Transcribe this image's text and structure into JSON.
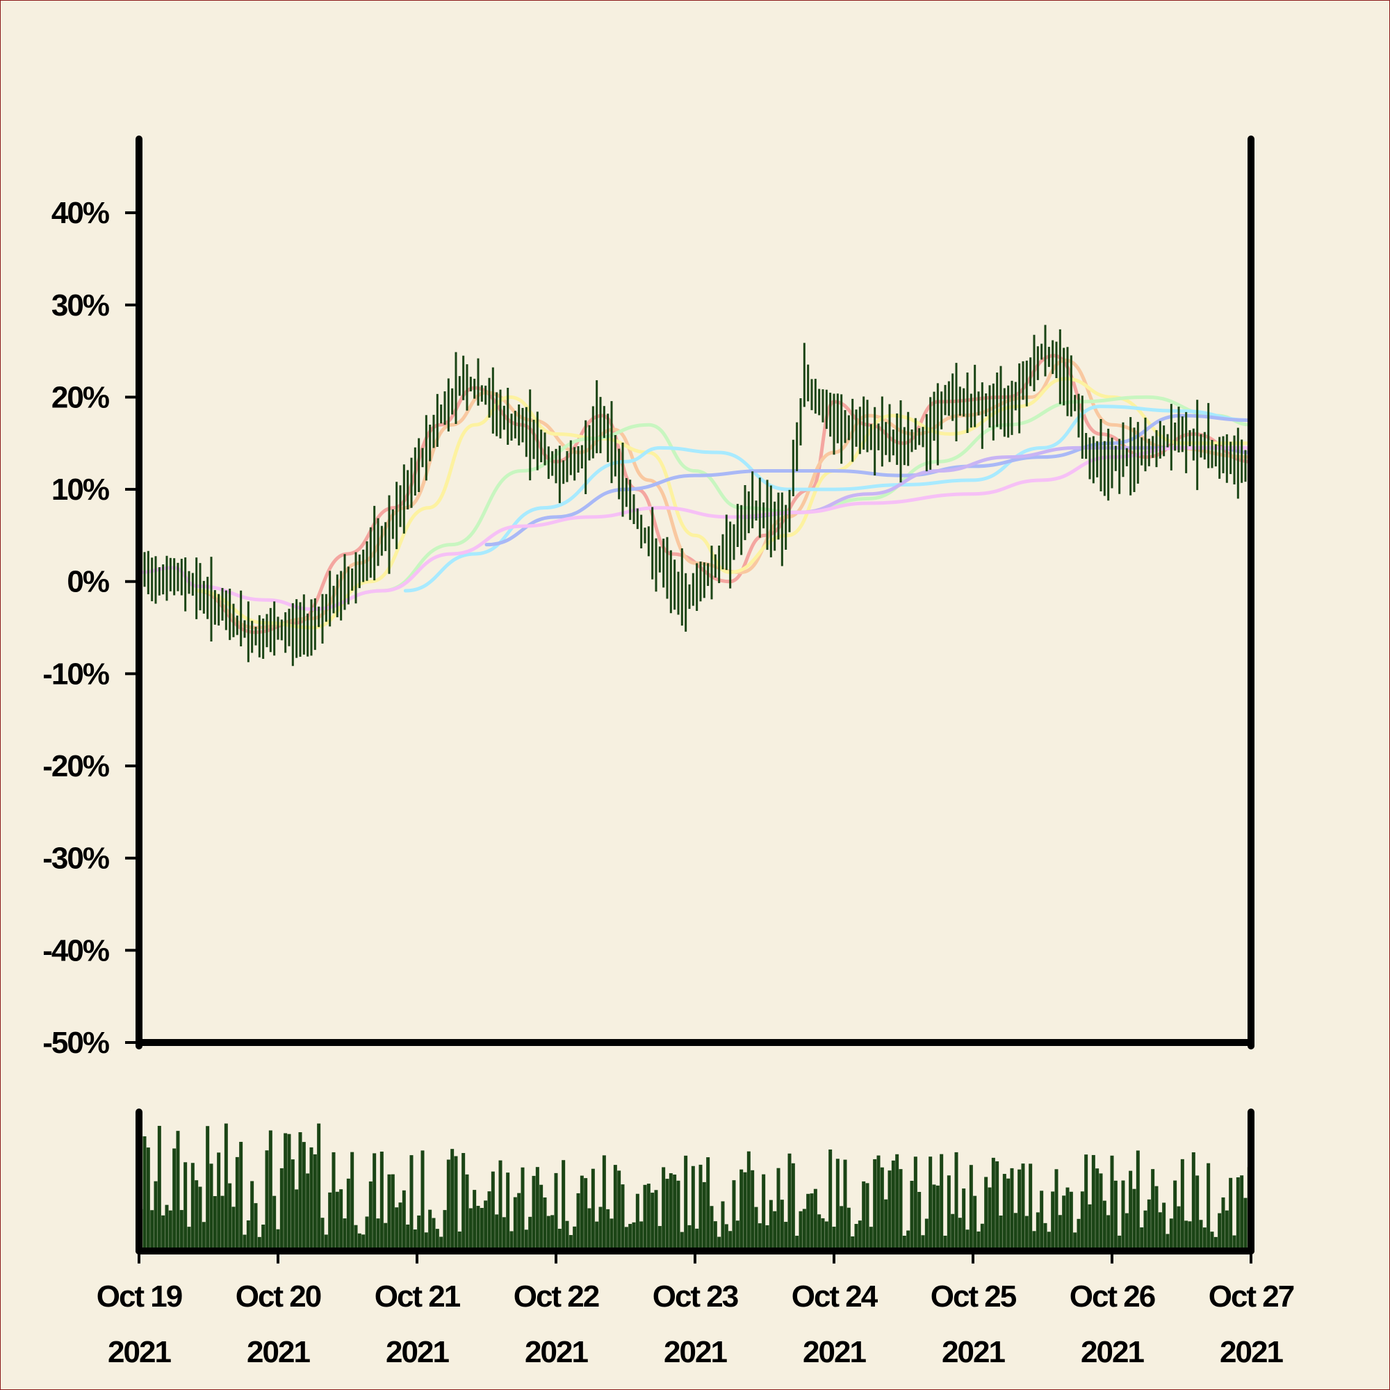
{
  "chart_data": {
    "type": "ohlc",
    "title": "",
    "xlabel": "",
    "ylabel": "",
    "y_unit": "%",
    "ylim": [
      -50,
      48
    ],
    "yticks": [
      -50,
      -40,
      -30,
      -20,
      -10,
      0,
      10,
      20,
      30,
      40
    ],
    "ytick_labels": [
      "-50%",
      "-40%",
      "-30%",
      "-20%",
      "-10%",
      "0%",
      "10%",
      "20%",
      "30%",
      "40%"
    ],
    "xlim": [
      "2021-10-19",
      "2021-10-27"
    ],
    "xticks": [
      {
        "date": "2021-10-19",
        "line1": "Oct 19",
        "line2": "2021"
      },
      {
        "date": "2021-10-20",
        "line1": "Oct 20",
        "line2": "2021"
      },
      {
        "date": "2021-10-21",
        "line1": "Oct 21",
        "line2": "2021"
      },
      {
        "date": "2021-10-22",
        "line1": "Oct 22",
        "line2": "2021"
      },
      {
        "date": "2021-10-23",
        "line1": "Oct 23",
        "line2": "2021"
      },
      {
        "date": "2021-10-24",
        "line1": "Oct 24",
        "line2": "2021"
      },
      {
        "date": "2021-10-25",
        "line1": "Oct 25",
        "line2": "2021"
      },
      {
        "date": "2021-10-26",
        "line1": "Oct 26",
        "line2": "2021"
      },
      {
        "date": "2021-10-27",
        "line1": "Oct 27",
        "line2": "2021"
      }
    ],
    "grid": false,
    "legend": "none",
    "price_color": "#1b4516",
    "volume_color": "#1b4516",
    "price_close_anchors": [
      [
        "2021-10-19",
        1
      ],
      [
        "2021-10-19T09:00",
        0
      ],
      [
        "2021-10-19T14:00",
        -3
      ],
      [
        "2021-10-19T20:00",
        -6
      ],
      [
        "2021-10-20",
        -5.5
      ],
      [
        "2021-10-20T05:00",
        -5
      ],
      [
        "2021-10-20T10:00",
        -2
      ],
      [
        "2021-10-20T15:00",
        2
      ],
      [
        "2021-10-20T20:00",
        6
      ],
      [
        "2021-10-21",
        12
      ],
      [
        "2021-10-21T04:00",
        18
      ],
      [
        "2021-10-21T08:00",
        22
      ],
      [
        "2021-10-21T12:00",
        20
      ],
      [
        "2021-10-21T16:00",
        17
      ],
      [
        "2021-10-21T20:00",
        16
      ],
      [
        "2021-10-22",
        12
      ],
      [
        "2021-10-22T04:00",
        13
      ],
      [
        "2021-10-22T08:00",
        18
      ],
      [
        "2021-10-22T12:00",
        10
      ],
      [
        "2021-10-22T16:00",
        4
      ],
      [
        "2021-10-22T22:00",
        -2
      ],
      [
        "2021-10-23T04:00",
        2
      ],
      [
        "2021-10-23T10:00",
        8
      ],
      [
        "2021-10-23T16:00",
        6
      ],
      [
        "2021-10-23T19:00",
        22
      ],
      [
        "2021-10-24",
        17
      ],
      [
        "2021-10-24T06:00",
        16
      ],
      [
        "2021-10-24T12:00",
        15
      ],
      [
        "2021-10-24T16:00",
        16
      ],
      [
        "2021-10-24T20:00",
        20
      ],
      [
        "2021-10-25",
        19
      ],
      [
        "2021-10-25T06:00",
        19
      ],
      [
        "2021-10-25T12:00",
        25
      ],
      [
        "2021-10-25T16:00",
        23
      ],
      [
        "2021-10-25T20:00",
        14
      ],
      [
        "2021-10-26",
        13
      ],
      [
        "2021-10-26T06:00",
        14
      ],
      [
        "2021-10-26T12:00",
        16
      ],
      [
        "2021-10-26T18:00",
        14
      ],
      [
        "2021-10-27",
        12
      ]
    ],
    "moving_averages": [
      {
        "color": "#f4a6a0",
        "points": [
          [
            "2021-10-19T10:00",
            -1
          ],
          [
            "2021-10-19T20:00",
            -5.5
          ],
          [
            "2021-10-20T03:00",
            -4.5
          ],
          [
            "2021-10-20T12:00",
            3
          ],
          [
            "2021-10-20T20:00",
            8
          ],
          [
            "2021-10-21T04:00",
            17
          ],
          [
            "2021-10-21T10:00",
            21
          ],
          [
            "2021-10-21T18:00",
            17
          ],
          [
            "2021-10-22",
            13
          ],
          [
            "2021-10-22T08:00",
            18
          ],
          [
            "2021-10-22T14:00",
            10
          ],
          [
            "2021-10-22T20:00",
            3
          ],
          [
            "2021-10-23T06:00",
            0
          ],
          [
            "2021-10-23T12:00",
            5
          ],
          [
            "2021-10-23T20:00",
            10
          ],
          [
            "2021-10-24",
            19.5
          ],
          [
            "2021-10-24T06:00",
            17
          ],
          [
            "2021-10-24T12:00",
            15
          ],
          [
            "2021-10-24T18:00",
            19.5
          ],
          [
            "2021-10-25T06:00",
            20
          ],
          [
            "2021-10-25T14:00",
            24.5
          ],
          [
            "2021-10-25T22:00",
            16
          ],
          [
            "2021-10-26T06:00",
            13.5
          ],
          [
            "2021-10-26T14:00",
            16
          ],
          [
            "2021-10-27",
            13
          ]
        ]
      },
      {
        "color": "#f9c8a0",
        "points": [
          [
            "2021-10-19T10:00",
            -1
          ],
          [
            "2021-10-19T20:00",
            -5
          ],
          [
            "2021-10-20T06:00",
            -4
          ],
          [
            "2021-10-20T14:00",
            2
          ],
          [
            "2021-10-20T22:00",
            8
          ],
          [
            "2021-10-21T06:00",
            17
          ],
          [
            "2021-10-21T12:00",
            20.5
          ],
          [
            "2021-10-21T20:00",
            17.5
          ],
          [
            "2021-10-22T04:00",
            14
          ],
          [
            "2021-10-22T10:00",
            16.5
          ],
          [
            "2021-10-22T16:00",
            11
          ],
          [
            "2021-10-23",
            2
          ],
          [
            "2021-10-23T08:00",
            1
          ],
          [
            "2021-10-23T16:00",
            7
          ],
          [
            "2021-10-24",
            14
          ],
          [
            "2021-10-24T06:00",
            18
          ],
          [
            "2021-10-24T14:00",
            16
          ],
          [
            "2021-10-24T22:00",
            18
          ],
          [
            "2021-10-25T10:00",
            20
          ],
          [
            "2021-10-25T16:00",
            24
          ],
          [
            "2021-10-26",
            17
          ],
          [
            "2021-10-26T10:00",
            14.5
          ],
          [
            "2021-10-27",
            13.5
          ]
        ]
      },
      {
        "color": "#fdf2a0",
        "points": [
          [
            "2021-10-19T10:00",
            -1
          ],
          [
            "2021-10-19T22:00",
            -4.5
          ],
          [
            "2021-10-20T06:00",
            -5
          ],
          [
            "2021-10-20T16:00",
            0
          ],
          [
            "2021-10-21T02:00",
            8
          ],
          [
            "2021-10-21T10:00",
            17
          ],
          [
            "2021-10-21T16:00",
            20
          ],
          [
            "2021-10-22",
            16
          ],
          [
            "2021-10-22T08:00",
            15.5
          ],
          [
            "2021-10-22T16:00",
            14
          ],
          [
            "2021-10-23",
            5
          ],
          [
            "2021-10-23T06:00",
            1
          ],
          [
            "2021-10-23T16:00",
            5
          ],
          [
            "2021-10-24",
            12
          ],
          [
            "2021-10-24T10:00",
            18
          ],
          [
            "2021-10-24T20:00",
            16
          ],
          [
            "2021-10-25T08:00",
            19
          ],
          [
            "2021-10-25T16:00",
            22
          ],
          [
            "2021-10-26",
            20
          ],
          [
            "2021-10-26T12:00",
            15
          ],
          [
            "2021-10-27",
            15
          ]
        ]
      },
      {
        "color": "#c8f6c0",
        "points": [
          [
            "2021-10-20T06:00",
            -3
          ],
          [
            "2021-10-20T18:00",
            -1
          ],
          [
            "2021-10-21T06:00",
            4
          ],
          [
            "2021-10-21T18:00",
            12
          ],
          [
            "2021-10-22T06:00",
            15.5
          ],
          [
            "2021-10-22T16:00",
            17
          ],
          [
            "2021-10-23",
            12
          ],
          [
            "2021-10-23T08:00",
            8
          ],
          [
            "2021-10-23T18:00",
            7.5
          ],
          [
            "2021-10-24T06:00",
            9
          ],
          [
            "2021-10-24T18:00",
            13
          ],
          [
            "2021-10-25T06:00",
            17
          ],
          [
            "2021-10-25T18:00",
            19.5
          ],
          [
            "2021-10-26T06:00",
            20
          ],
          [
            "2021-10-26T18:00",
            18
          ],
          [
            "2021-10-27",
            17
          ]
        ]
      },
      {
        "color": "#a8eaff",
        "points": [
          [
            "2021-10-20T22:00",
            -1
          ],
          [
            "2021-10-21T10:00",
            3
          ],
          [
            "2021-10-21T22:00",
            8
          ],
          [
            "2021-10-22T12:00",
            13
          ],
          [
            "2021-10-22T18:00",
            14.5
          ],
          [
            "2021-10-23T04:00",
            14
          ],
          [
            "2021-10-23T16:00",
            10
          ],
          [
            "2021-10-24",
            10
          ],
          [
            "2021-10-24T12:00",
            10.5
          ],
          [
            "2021-10-25",
            11
          ],
          [
            "2021-10-25T12:00",
            14.5
          ],
          [
            "2021-10-25T22:00",
            19
          ],
          [
            "2021-10-26T12:00",
            18.5
          ],
          [
            "2021-10-27",
            17.5
          ]
        ]
      },
      {
        "color": "#a9b8f6",
        "points": [
          [
            "2021-10-21T12:00",
            4
          ],
          [
            "2021-10-22",
            7
          ],
          [
            "2021-10-22T12:00",
            10
          ],
          [
            "2021-10-23",
            11.5
          ],
          [
            "2021-10-23T12:00",
            12
          ],
          [
            "2021-10-24",
            12
          ],
          [
            "2021-10-24T12:00",
            11.5
          ],
          [
            "2021-10-25",
            12.5
          ],
          [
            "2021-10-25T12:00",
            13.5
          ],
          [
            "2021-10-26",
            15
          ],
          [
            "2021-10-26T12:00",
            18
          ],
          [
            "2021-10-27",
            17.5
          ]
        ]
      },
      {
        "color": "#c8b4f4",
        "points": [
          [
            "2021-10-23T08:00",
            7
          ],
          [
            "2021-10-23T18:00",
            7.5
          ],
          [
            "2021-10-24T06:00",
            9.5
          ],
          [
            "2021-10-24T18:00",
            12
          ],
          [
            "2021-10-25T06:00",
            13.5
          ],
          [
            "2021-10-25T18:00",
            14.5
          ],
          [
            "2021-10-26T06:00",
            14.5
          ],
          [
            "2021-10-26T18:00",
            14.5
          ],
          [
            "2021-10-27",
            14
          ]
        ]
      },
      {
        "color": "#f6c0f6",
        "points": [
          [
            "2021-10-19",
            1
          ],
          [
            "2021-10-19T06:00",
            1.5
          ],
          [
            "2021-10-19T10:00",
            -0.5
          ],
          [
            "2021-10-19T22:00",
            -2
          ],
          [
            "2021-10-20T06:00",
            -3
          ],
          [
            "2021-10-20T18:00",
            -1
          ],
          [
            "2021-10-21T06:00",
            3
          ],
          [
            "2021-10-21T18:00",
            6
          ],
          [
            "2021-10-22T06:00",
            7
          ],
          [
            "2021-10-22T18:00",
            8
          ],
          [
            "2021-10-23T06:00",
            7
          ],
          [
            "2021-10-23T18:00",
            7.5
          ],
          [
            "2021-10-24T06:00",
            8.5
          ],
          [
            "2021-10-25",
            9.5
          ],
          [
            "2021-10-25T12:00",
            11
          ],
          [
            "2021-10-26",
            13.5
          ],
          [
            "2021-10-26T12:00",
            14.5
          ],
          [
            "2021-10-27",
            14.5
          ]
        ]
      }
    ]
  }
}
